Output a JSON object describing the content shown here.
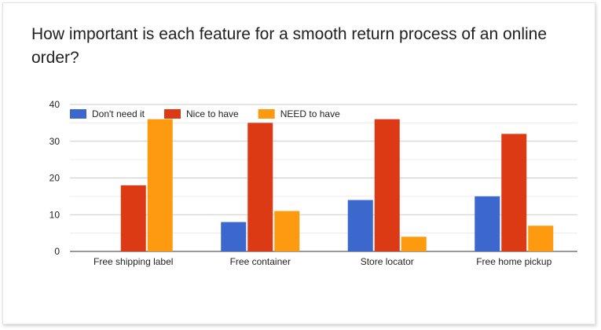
{
  "chart_data": {
    "type": "bar",
    "title": "How important is each feature for a smooth return process of an online order?",
    "categories": [
      "Free shipping label",
      "Free container",
      "Store locator",
      "Free home pickup"
    ],
    "series": [
      {
        "name": "Don't need it",
        "color": "#3c67cc",
        "values": [
          0,
          8,
          14,
          15
        ]
      },
      {
        "name": "Nice to have",
        "color": "#dc3a15",
        "values": [
          18,
          35,
          36,
          32
        ]
      },
      {
        "name": "NEED to have",
        "color": "#fe9a10",
        "values": [
          36,
          11,
          4,
          7
        ]
      }
    ],
    "ylim": [
      0,
      40
    ],
    "yticks": [
      0,
      10,
      20,
      30,
      40
    ],
    "grid": true,
    "legend": "top-left"
  }
}
